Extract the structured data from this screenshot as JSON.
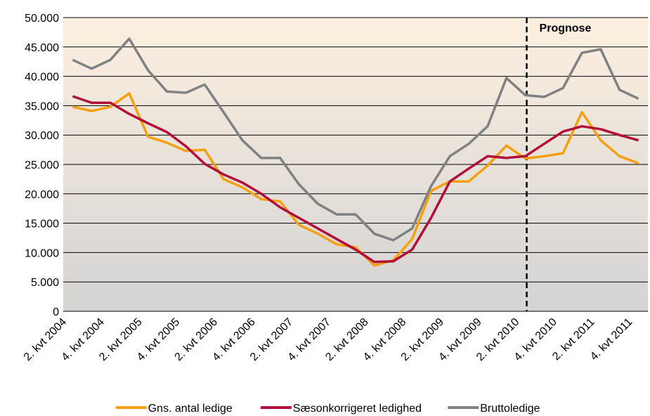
{
  "chart_data": {
    "type": "line",
    "categories": [
      "2. kvt 2004",
      null,
      "4. kvt 2004",
      null,
      "2. kvt 2005",
      null,
      "4. kvt 2005",
      null,
      "2. kvt 2006",
      null,
      "4. kvt 2006",
      null,
      "2. kvt 2007",
      null,
      "4. kvt 2007",
      null,
      "2. kvt 2008",
      null,
      "4. kvt 2008",
      null,
      "2. kvt 2009",
      null,
      "4. kvt 2009",
      null,
      "2. kvt 2010",
      null,
      "4. kvt 2010",
      null,
      "2. kvt 2011",
      null,
      "4. kvt 2011"
    ],
    "series": [
      {
        "name": "Gns. antal ledige",
        "color": "#f5a011",
        "values": [
          34800,
          34100,
          34800,
          37100,
          29700,
          28700,
          27300,
          27500,
          22500,
          21100,
          19100,
          18700,
          14700,
          13200,
          11400,
          10900,
          7800,
          8700,
          12300,
          20500,
          22100,
          22100,
          24800,
          28200,
          26000,
          26400,
          26900,
          33900,
          29100,
          26400,
          25200
        ]
      },
      {
        "name": "Sæsonkorrigeret ledighed",
        "color": "#b0103a",
        "values": [
          36600,
          35500,
          35500,
          33600,
          32000,
          30500,
          28100,
          25100,
          23300,
          21900,
          20000,
          17700,
          15900,
          14100,
          12300,
          10500,
          8400,
          8500,
          10500,
          15900,
          22100,
          24300,
          26400,
          26100,
          26400,
          28500,
          30600,
          31500,
          31000,
          30000,
          29100
        ]
      },
      {
        "name": "Bruttoledige",
        "color": "#7f8183",
        "values": [
          42800,
          41300,
          42800,
          46400,
          41000,
          37400,
          37200,
          38600,
          33900,
          29100,
          26100,
          26100,
          21600,
          18300,
          16500,
          16500,
          13200,
          12100,
          14100,
          21300,
          26400,
          28500,
          31500,
          39700,
          36800,
          36500,
          38000,
          44000,
          44600,
          37700,
          36200
        ]
      }
    ],
    "ylim": [
      0,
      50000
    ],
    "yticks": [
      0,
      {
        "value": 5000,
        "label": "5.000"
      },
      {
        "value": 10000,
        "label": "10.000"
      },
      {
        "value": 15000,
        "label": "15.000"
      },
      {
        "value": 20000,
        "label": "20.000"
      },
      {
        "value": 25000,
        "label": "25.000"
      },
      {
        "value": 30000,
        "label": "30.000"
      },
      {
        "value": 35000,
        "label": "35.000"
      },
      {
        "value": 40000,
        "label": "40.000"
      },
      {
        "value": 45000,
        "label": "45.000"
      },
      {
        "value": 50000,
        "label": "50.000"
      }
    ],
    "grid": true,
    "legend": "bottom",
    "annotations": [
      {
        "text": "Prognose",
        "x": "2. kvt 2010"
      }
    ]
  }
}
